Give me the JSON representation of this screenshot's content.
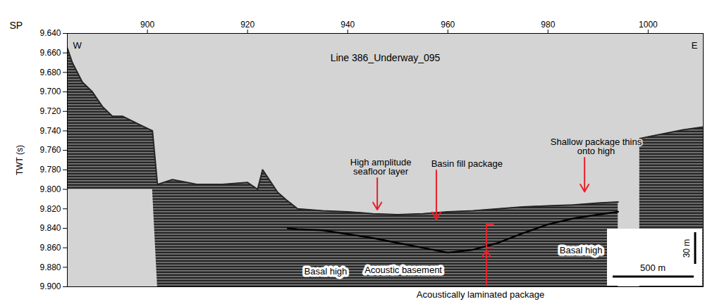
{
  "chart_data": {
    "type": "seismic",
    "title": "Line 386_Underway_095",
    "x_label": "SP",
    "y_label": "TWT (s)",
    "corner_labels": [
      "W",
      "E"
    ],
    "xlim": [
      884,
      1011
    ],
    "xticks": [
      900,
      920,
      940,
      960,
      980,
      1000
    ],
    "ylim": [
      9.64,
      9.9
    ],
    "yticks": [
      {
        "value": 9.64,
        "label": "9.640"
      },
      {
        "value": 9.66,
        "label": "9.660"
      },
      {
        "value": 9.68,
        "label": "9.680"
      },
      {
        "value": 9.7,
        "label": "9.700"
      },
      {
        "value": 9.72,
        "label": "9.720"
      },
      {
        "value": 9.74,
        "label": "9.740"
      },
      {
        "value": 9.76,
        "label": "9.760"
      },
      {
        "value": 9.78,
        "label": "9.780"
      },
      {
        "value": 9.8,
        "label": "9.800"
      },
      {
        "value": 9.82,
        "label": "9.820"
      },
      {
        "value": 9.84,
        "label": "9.840"
      },
      {
        "value": 9.86,
        "label": "9.860"
      },
      {
        "value": 9.88,
        "label": "9.880"
      },
      {
        "value": 9.9,
        "label": "9.900"
      }
    ],
    "x": [
      884,
      885,
      887,
      889,
      891,
      893,
      895,
      897,
      899,
      901,
      902,
      905,
      910,
      915,
      920,
      922,
      923,
      926,
      928,
      930,
      935,
      940,
      945,
      950,
      955,
      960,
      965,
      970,
      975,
      980,
      985,
      990,
      994,
      996.5,
      998.3,
      1001,
      1004,
      1007,
      1011
    ],
    "series": [
      {
        "type": "area",
        "color": "#262626",
        "values": [
          9.655,
          9.67,
          9.69,
          9.7,
          9.715,
          9.725,
          9.725,
          9.73,
          9.735,
          9.74,
          9.795,
          9.79,
          9.795,
          9.795,
          9.793,
          9.8,
          9.78,
          9.803,
          9.812,
          9.82,
          9.822,
          9.823,
          9.825,
          9.826,
          9.825,
          9.823,
          9.822,
          9.82,
          9.818,
          9.817,
          9.816,
          9.814,
          9.813,
          null,
          9.748,
          9.745,
          9.742,
          9.739,
          9.736
        ],
        "base": [
          9.8,
          9.8,
          9.8,
          9.8,
          9.8,
          9.8,
          9.8,
          9.8,
          9.8,
          9.8,
          9.9,
          9.9,
          9.9,
          9.9,
          9.9,
          9.9,
          9.9,
          9.9,
          9.9,
          9.9,
          9.9,
          9.9,
          9.9,
          9.9,
          9.9,
          9.9,
          9.9,
          9.9,
          9.9,
          9.9,
          9.9,
          9.9,
          9.9,
          null,
          9.9,
          9.9,
          9.9,
          9.9,
          9.9
        ]
      },
      {
        "type": "line",
        "color": "#000000",
        "values": [
          null,
          null,
          null,
          null,
          null,
          null,
          null,
          null,
          null,
          null,
          null,
          null,
          null,
          null,
          null,
          null,
          null,
          null,
          9.84,
          9.841,
          9.842,
          9.846,
          9.85,
          9.855,
          9.86,
          9.865,
          9.862,
          9.855,
          9.845,
          9.836,
          9.83,
          9.826,
          9.823,
          null,
          null,
          null,
          null,
          null,
          null
        ]
      }
    ],
    "annotations": [
      {
        "text": "High amplitude\nseafloor layer",
        "x": 946.6,
        "y": 9.787,
        "arrow_x": 945.9,
        "arrow_y": 9.821
      },
      {
        "text": "Basin fill package",
        "x": 963.8,
        "y": 9.779,
        "arrow_x": 957.7,
        "arrow_y": 9.831
      },
      {
        "text": "Shallow package thins\nonto high",
        "x": 989.6,
        "y": 9.766,
        "arrow_x": 987.3,
        "arrow_y": 9.8025
      },
      {
        "text": "Acoustically laminated package",
        "x": 966.5,
        "y": 9.9,
        "arrow_x": 967.7,
        "arrow_y": 9.862
      }
    ],
    "bracket": {
      "x": 967.7,
      "y1": 9.836,
      "y2": 9.86
    },
    "labels": [
      {
        "text": "Basal high",
        "x": 935.6,
        "y": 9.884
      },
      {
        "text": "Acoustic basement",
        "x": 951.1,
        "y": 9.883
      },
      {
        "text": "Basal high",
        "x": 986.6,
        "y": 9.863
      }
    ],
    "scale_bar": {
      "horizontal": "500 m",
      "vertical": "30 m"
    }
  }
}
